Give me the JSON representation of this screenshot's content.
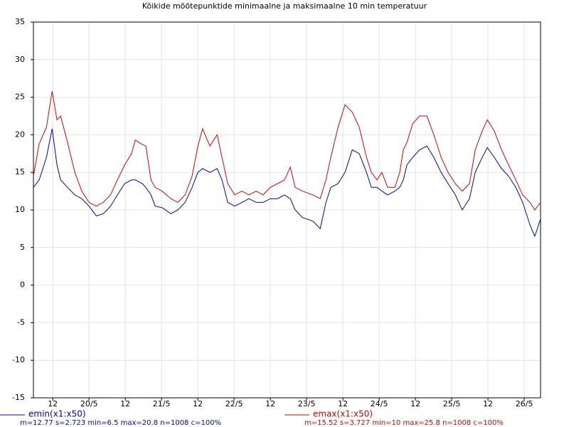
{
  "chart_data": {
    "type": "line",
    "title": "Kõikide mõõtepunktide minimaalne ja maksimaalne 10 min temperatuur",
    "x": [
      5.6,
      7.5,
      9.9,
      11.8,
      13.4,
      14.6,
      16.9,
      19.3,
      21.6,
      24.0,
      26.4,
      28.7,
      31.1,
      33.4,
      35.8,
      38.1,
      39.3,
      41.6,
      42.8,
      44.5,
      45.9,
      48.2,
      51.1,
      53.4,
      55.8,
      58.1,
      60.0,
      61.6,
      64.0,
      66.4,
      68.0,
      69.9,
      72.2,
      74.6,
      76.9,
      79.3,
      81.6,
      84.0,
      86.4,
      88.7,
      90.6,
      92.2,
      94.6,
      98.1,
      100.5,
      102.4,
      104.0,
      106.4,
      108.7,
      111.1,
      113.4,
      115.8,
      117.4,
      119.3,
      120.9,
      122.8,
      125.2,
      126.8,
      128.0,
      129.2,
      131.1,
      133.4,
      135.8,
      138.1,
      140.5,
      142.8,
      145.2,
      147.5,
      149.9,
      151.8,
      154.1,
      155.8,
      158.1,
      160.5,
      162.8,
      165.2,
      167.5,
      169.9,
      171.5,
      173.4
    ],
    "series": [
      {
        "name": "emin(x1:x50)",
        "color": "#0000cc",
        "values": [
          13,
          14,
          17,
          20.8,
          16,
          14,
          13,
          12,
          11.5,
          10.5,
          9.2,
          9.5,
          10.5,
          12,
          13.5,
          14,
          14,
          13.5,
          13,
          12,
          10.5,
          10.3,
          9.5,
          10,
          11,
          13,
          15,
          15.5,
          15,
          15.5,
          14,
          11,
          10.5,
          11,
          11.5,
          11,
          11,
          11.5,
          11.5,
          12,
          11.5,
          10,
          9,
          8.5,
          7.5,
          11,
          13,
          13.5,
          15,
          18,
          17.5,
          15,
          13,
          13,
          12.5,
          12,
          12.5,
          13,
          14,
          16,
          17,
          18,
          18.5,
          17,
          15,
          13.5,
          12,
          10,
          11.5,
          15,
          17,
          18.3,
          17,
          15.5,
          14.5,
          13,
          11,
          8,
          6.5,
          8.8
        ]
      },
      {
        "name": "emax(x1:x50)",
        "color": "#dd0000",
        "values": [
          14.5,
          18.8,
          21,
          25.8,
          22,
          22.5,
          19,
          15,
          12.5,
          11,
          10.5,
          11,
          12,
          14,
          16,
          17.5,
          19.3,
          18.7,
          18.5,
          14,
          13,
          12.5,
          11.5,
          11,
          12,
          14.5,
          18.5,
          20.8,
          18.5,
          20,
          17,
          13.5,
          12,
          12.5,
          12,
          12.5,
          12,
          13,
          13.5,
          14,
          15.7,
          13,
          12.5,
          12,
          11.5,
          14,
          17,
          21,
          24,
          23,
          21,
          17,
          15,
          14,
          15,
          13,
          13,
          15,
          18,
          19,
          21.5,
          22.5,
          22.5,
          20,
          17,
          15,
          13.5,
          12.5,
          13.5,
          18,
          20.5,
          22,
          20.5,
          18,
          16,
          14,
          12,
          11,
          10,
          11
        ]
      }
    ],
    "annotations": [
      "m=12.77 s=2.723 min=6.5 max=20.8 n=1008 c=100%",
      "m=15.52 s=3.727 min=10 max=25.8 n=1008 c=100%"
    ],
    "xlim": [
      5.6,
      173.4
    ],
    "xticks": [
      12,
      {
        "value": 24,
        "label": "20/5"
      },
      {
        "value": 36,
        "label": "12"
      },
      {
        "value": 48,
        "label": "21/5"
      },
      {
        "value": 60,
        "label": "12"
      },
      {
        "value": 72,
        "label": "22/5"
      },
      {
        "value": 84,
        "label": "12"
      },
      {
        "value": 96,
        "label": "23/5"
      },
      {
        "value": 108,
        "label": "12"
      },
      {
        "value": 120,
        "label": "24/5"
      },
      {
        "value": 132,
        "label": "12"
      },
      {
        "value": 144,
        "label": "25/5"
      },
      {
        "value": 156,
        "label": "12"
      },
      {
        "value": 168,
        "label": "26/5"
      }
    ],
    "ylim": [
      -15,
      35
    ],
    "yticks": [
      -15,
      -10,
      -5,
      0,
      5,
      10,
      15,
      20,
      25,
      30,
      35
    ],
    "grid": true
  }
}
